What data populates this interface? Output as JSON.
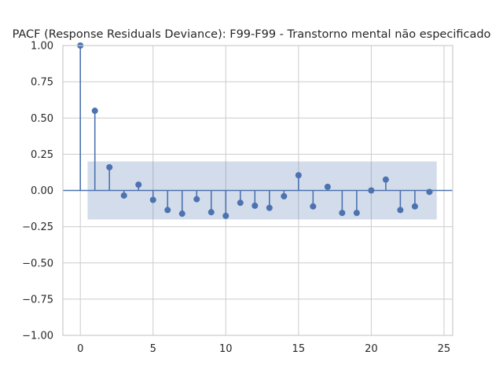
{
  "chart_data": {
    "type": "stem",
    "title": "PACF (Response Residuals Deviance): F99-F99 - Transtorno mental não especificado",
    "xlabel": "",
    "ylabel": "",
    "x": [
      0,
      1,
      2,
      3,
      4,
      5,
      6,
      7,
      8,
      9,
      10,
      11,
      12,
      13,
      14,
      15,
      16,
      17,
      18,
      19,
      20,
      21,
      22,
      23,
      24
    ],
    "values": [
      1.0,
      0.55,
      0.16,
      -0.035,
      0.04,
      -0.065,
      -0.135,
      -0.16,
      -0.06,
      -0.15,
      -0.175,
      -0.085,
      -0.105,
      -0.12,
      -0.04,
      0.105,
      -0.11,
      0.025,
      -0.155,
      -0.155,
      0.0,
      0.075,
      -0.135,
      -0.11,
      -0.01
    ],
    "confidence_band": {
      "x_range": [
        0.5,
        24.5
      ],
      "upper": 0.2,
      "lower": -0.2
    },
    "xlim": [
      -1.2,
      25.6
    ],
    "ylim": [
      -1.0,
      1.0
    ],
    "xticks": [
      0,
      5,
      10,
      15,
      20,
      25
    ],
    "xtick_labels": [
      "0",
      "5",
      "10",
      "15",
      "20",
      "25"
    ],
    "yticks": [
      -1.0,
      -0.75,
      -0.5,
      -0.25,
      0.0,
      0.25,
      0.5,
      0.75,
      1.0
    ],
    "ytick_labels": [
      "−1.00",
      "−0.75",
      "−0.50",
      "−0.25",
      "0.00",
      "0.25",
      "0.50",
      "0.75",
      "1.00"
    ],
    "grid": true,
    "colors": {
      "series": "#4c72b0",
      "band": "#4c72b0",
      "grid": "#cccccc",
      "spine": "#cccccc",
      "text": "#262626"
    }
  }
}
